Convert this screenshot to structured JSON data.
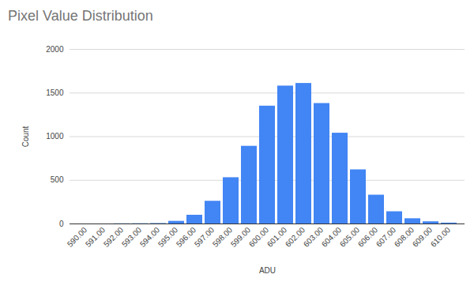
{
  "chart_data": {
    "type": "bar",
    "title": "Pixel Value Distribution",
    "x_label": "ADU",
    "y_label": "Count",
    "categories": [
      "590.00",
      "591.00",
      "592.00",
      "593.00",
      "594.00",
      "595.00",
      "596.00",
      "597.00",
      "598.00",
      "599.00",
      "600.00",
      "601.00",
      "602.00",
      "603.00",
      "604.00",
      "605.00",
      "606.00",
      "607.00",
      "608.00",
      "609.00",
      "610.00"
    ],
    "values": [
      0,
      0,
      2,
      3,
      5,
      30,
      100,
      260,
      530,
      890,
      1350,
      1580,
      1610,
      1380,
      1040,
      620,
      330,
      140,
      60,
      25,
      10
    ],
    "color": "#4285f4",
    "ylim": [
      0,
      2000
    ],
    "yticks": [
      0,
      500,
      1000,
      1500,
      2000
    ],
    "grid": true
  }
}
